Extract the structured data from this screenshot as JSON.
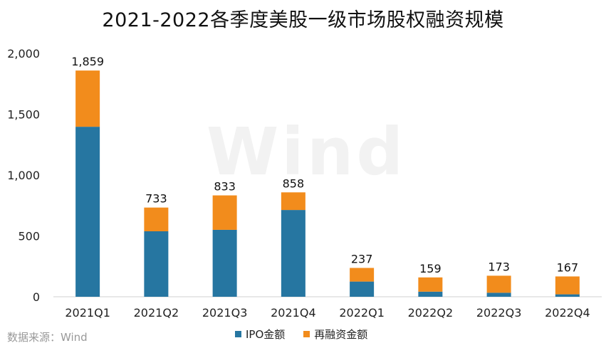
{
  "title": "2021-2022各季度美股一级市场股权融资规模",
  "source": "数据来源：Wind",
  "watermark": "Wind",
  "chart_data": {
    "type": "bar",
    "stacked": true,
    "title": "2021-2022各季度美股一级市场股权融资规模",
    "categories": [
      "2021Q1",
      "2021Q2",
      "2021Q3",
      "2021Q4",
      "2022Q1",
      "2022Q2",
      "2022Q3",
      "2022Q4"
    ],
    "series": [
      {
        "name": "IPO金额",
        "color": "#2676a1",
        "values": [
          1397,
          538,
          550,
          713,
          125,
          42,
          33,
          20
        ]
      },
      {
        "name": "再融资金额",
        "color": "#f28c1c",
        "values": [
          462,
          195,
          283,
          145,
          112,
          117,
          140,
          147
        ]
      }
    ],
    "totals": [
      1859,
      733,
      833,
      858,
      237,
      159,
      173,
      167
    ],
    "total_labels": [
      "1,859",
      "733",
      "833",
      "858",
      "237",
      "159",
      "173",
      "167"
    ],
    "yticks": [
      0,
      500,
      1000,
      1500,
      2000
    ],
    "ytick_labels": [
      "0",
      "500",
      "1,000",
      "1,500",
      "2,000"
    ],
    "ylim": [
      0,
      2000
    ],
    "grid": false,
    "legend_position": "bottom"
  }
}
